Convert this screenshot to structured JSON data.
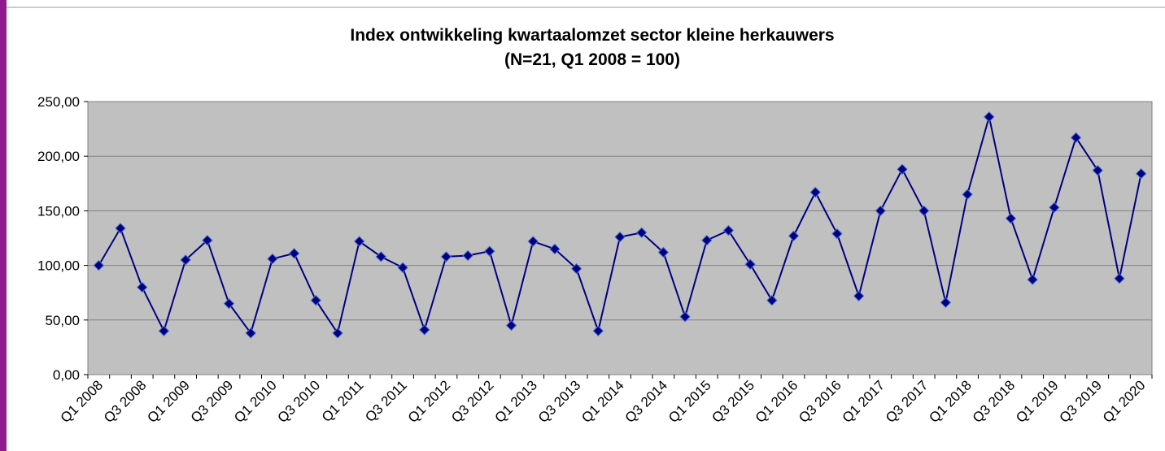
{
  "chart_data": {
    "type": "line",
    "title": "Index ontwikkeling kwartaalomzet sector kleine herkauwers",
    "subtitle": "(N=21, Q1 2008 = 100)",
    "categories": [
      "Q1 2008",
      null,
      "Q3 2008",
      null,
      "Q1 2009",
      null,
      "Q3 2009",
      null,
      "Q1 2010",
      null,
      "Q3 2010",
      null,
      "Q1 2011",
      null,
      "Q3 2011",
      null,
      "Q1 2012",
      null,
      "Q3 2012",
      null,
      "Q1 2013",
      null,
      "Q3 2013",
      null,
      "Q1 2014",
      null,
      "Q3 2014",
      null,
      "Q1 2015",
      null,
      "Q3 2015",
      null,
      "Q1 2016",
      null,
      "Q3 2016",
      null,
      "Q1 2017",
      null,
      "Q3 2017",
      null,
      "Q1 2018",
      null,
      "Q3 2018",
      null,
      "Q1 2019",
      null,
      "Q3 2019",
      null,
      "Q1 2020"
    ],
    "series": [
      {
        "color": "#000080",
        "values": [
          100,
          134,
          80,
          40,
          105,
          123,
          65,
          38,
          106,
          111,
          68,
          38,
          122,
          108,
          98,
          41,
          108,
          109,
          113,
          45,
          122,
          115,
          97,
          40,
          126,
          130,
          112,
          53,
          123,
          132,
          101,
          68,
          127,
          167,
          129,
          72,
          150,
          188,
          150,
          66,
          165,
          236,
          143,
          87,
          153,
          217,
          187,
          88,
          184
        ]
      }
    ],
    "ylim": [
      0,
      250
    ],
    "yticks": [
      {
        "value": 0,
        "label": "0,00"
      },
      {
        "value": 50,
        "label": "50,00"
      },
      {
        "value": 100,
        "label": "100,00"
      },
      {
        "value": 150,
        "label": "150,00"
      },
      {
        "value": 200,
        "label": "200,00"
      },
      {
        "value": 250,
        "label": "250,00"
      }
    ],
    "grid": true,
    "plot_background": "#c0c0c0"
  }
}
